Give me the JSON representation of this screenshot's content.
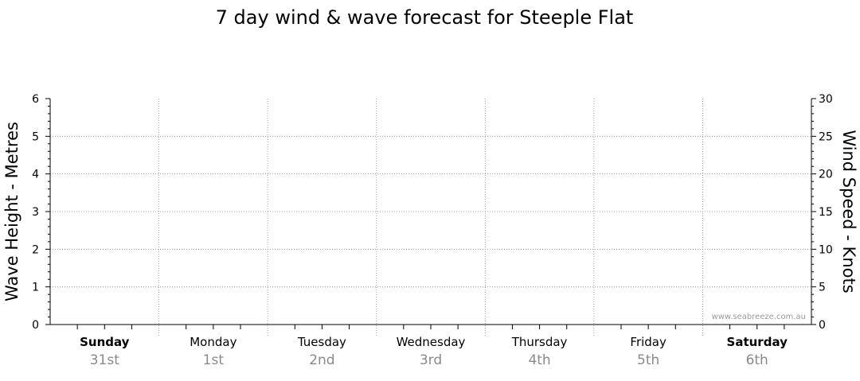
{
  "chart_data": {
    "type": "line",
    "title": "7 day wind & wave forecast for Steeple Flat",
    "ylabel_left": "Wave Height - Metres",
    "ylabel_right": "Wind Speed - Knots",
    "ylim_left": [
      0,
      6
    ],
    "ylim_right": [
      0,
      30
    ],
    "yticks_left": [
      "0",
      "1",
      "2",
      "3",
      "4",
      "5",
      "6"
    ],
    "yticks_right": [
      "0",
      "5",
      "10",
      "15",
      "20",
      "25",
      "30"
    ],
    "days": [
      {
        "name": "Sunday",
        "date": "31st",
        "bold": true
      },
      {
        "name": "Monday",
        "date": "1st",
        "bold": false
      },
      {
        "name": "Tuesday",
        "date": "2nd",
        "bold": false
      },
      {
        "name": "Wednesday",
        "date": "3rd",
        "bold": false
      },
      {
        "name": "Thursday",
        "date": "4th",
        "bold": false
      },
      {
        "name": "Friday",
        "date": "5th",
        "bold": false
      },
      {
        "name": "Saturday",
        "date": "6th",
        "bold": true
      }
    ],
    "series": [],
    "grid": true,
    "watermark": "www.seabreeze.com.au"
  }
}
